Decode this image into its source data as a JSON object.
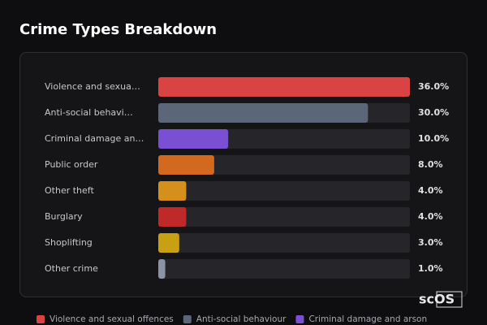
{
  "chart_data": {
    "type": "bar",
    "orientation": "horizontal",
    "title": "Crime Types Breakdown",
    "categories": [
      "Violence and sexua…",
      "Anti-social behavi…",
      "Criminal damage an…",
      "Public order",
      "Other theft",
      "Burglary",
      "Shoplifting",
      "Other crime"
    ],
    "values": [
      36,
      30,
      10,
      8,
      4,
      4,
      3,
      1
    ],
    "value_labels": [
      "36.0%",
      "30.0%",
      "10.0%",
      "8.0%",
      "4.0%",
      "4.0%",
      "3.0%",
      "1.0%"
    ],
    "colors": [
      "#d94343",
      "#5b6779",
      "#7a4fd4",
      "#d2691e",
      "#d4901a",
      "#c02929",
      "#c9a012",
      "#8a94a6"
    ],
    "xlim": [
      0,
      36
    ],
    "legend": [
      "Violence and sexual offences",
      "Anti-social behaviour",
      "Criminal damage and arson"
    ],
    "watermark": "scOS"
  }
}
